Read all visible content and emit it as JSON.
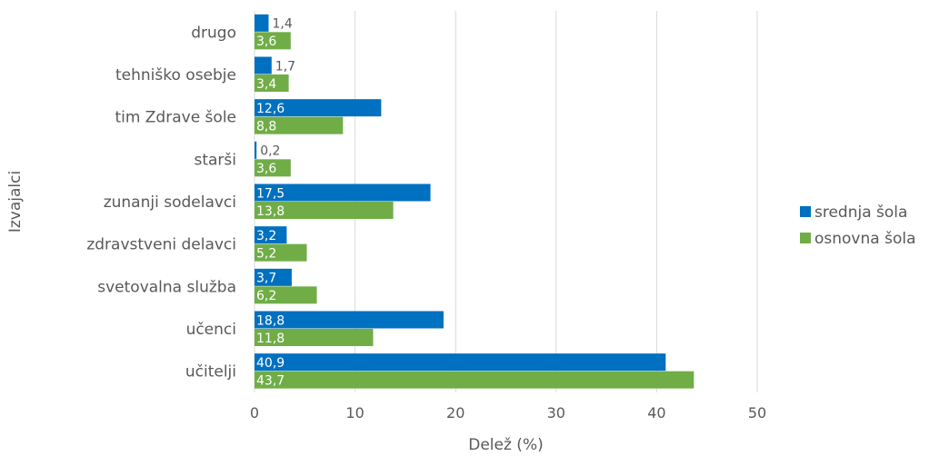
{
  "chart_data": {
    "type": "bar",
    "orientation": "horizontal",
    "categories": [
      "drugo",
      "tehniško osebje",
      "tim Zdrave šole",
      "starši",
      "zunanji sodelavci",
      "zdravstveni delavci",
      "svetovalna služba",
      "učenci",
      "učitelji"
    ],
    "series": [
      {
        "name": "srednja šola",
        "color": "#0070c0",
        "values": [
          1.4,
          1.7,
          12.6,
          0.2,
          17.5,
          3.2,
          3.7,
          18.8,
          40.9
        ],
        "labels": [
          "1,4",
          "1,7",
          "12,6",
          "0,2",
          "17,5",
          "3,2",
          "3,7",
          "18,8",
          "40,9"
        ]
      },
      {
        "name": "osnovna šola",
        "color": "#70ad47",
        "values": [
          3.6,
          3.4,
          8.8,
          3.6,
          13.8,
          5.2,
          6.2,
          11.8,
          43.7
        ],
        "labels": [
          "3,6",
          "3,4",
          "8,8",
          "3,6",
          "13,8",
          "5,2",
          "6,2",
          "11,8",
          "43,7"
        ]
      }
    ],
    "xlabel": "Delež (%)",
    "ylabel": "Izvajalci",
    "xlim": [
      0,
      50
    ],
    "xticks": [
      0,
      10,
      20,
      30,
      40,
      50
    ],
    "vertical_gridlines": true,
    "legend_position": "right"
  }
}
